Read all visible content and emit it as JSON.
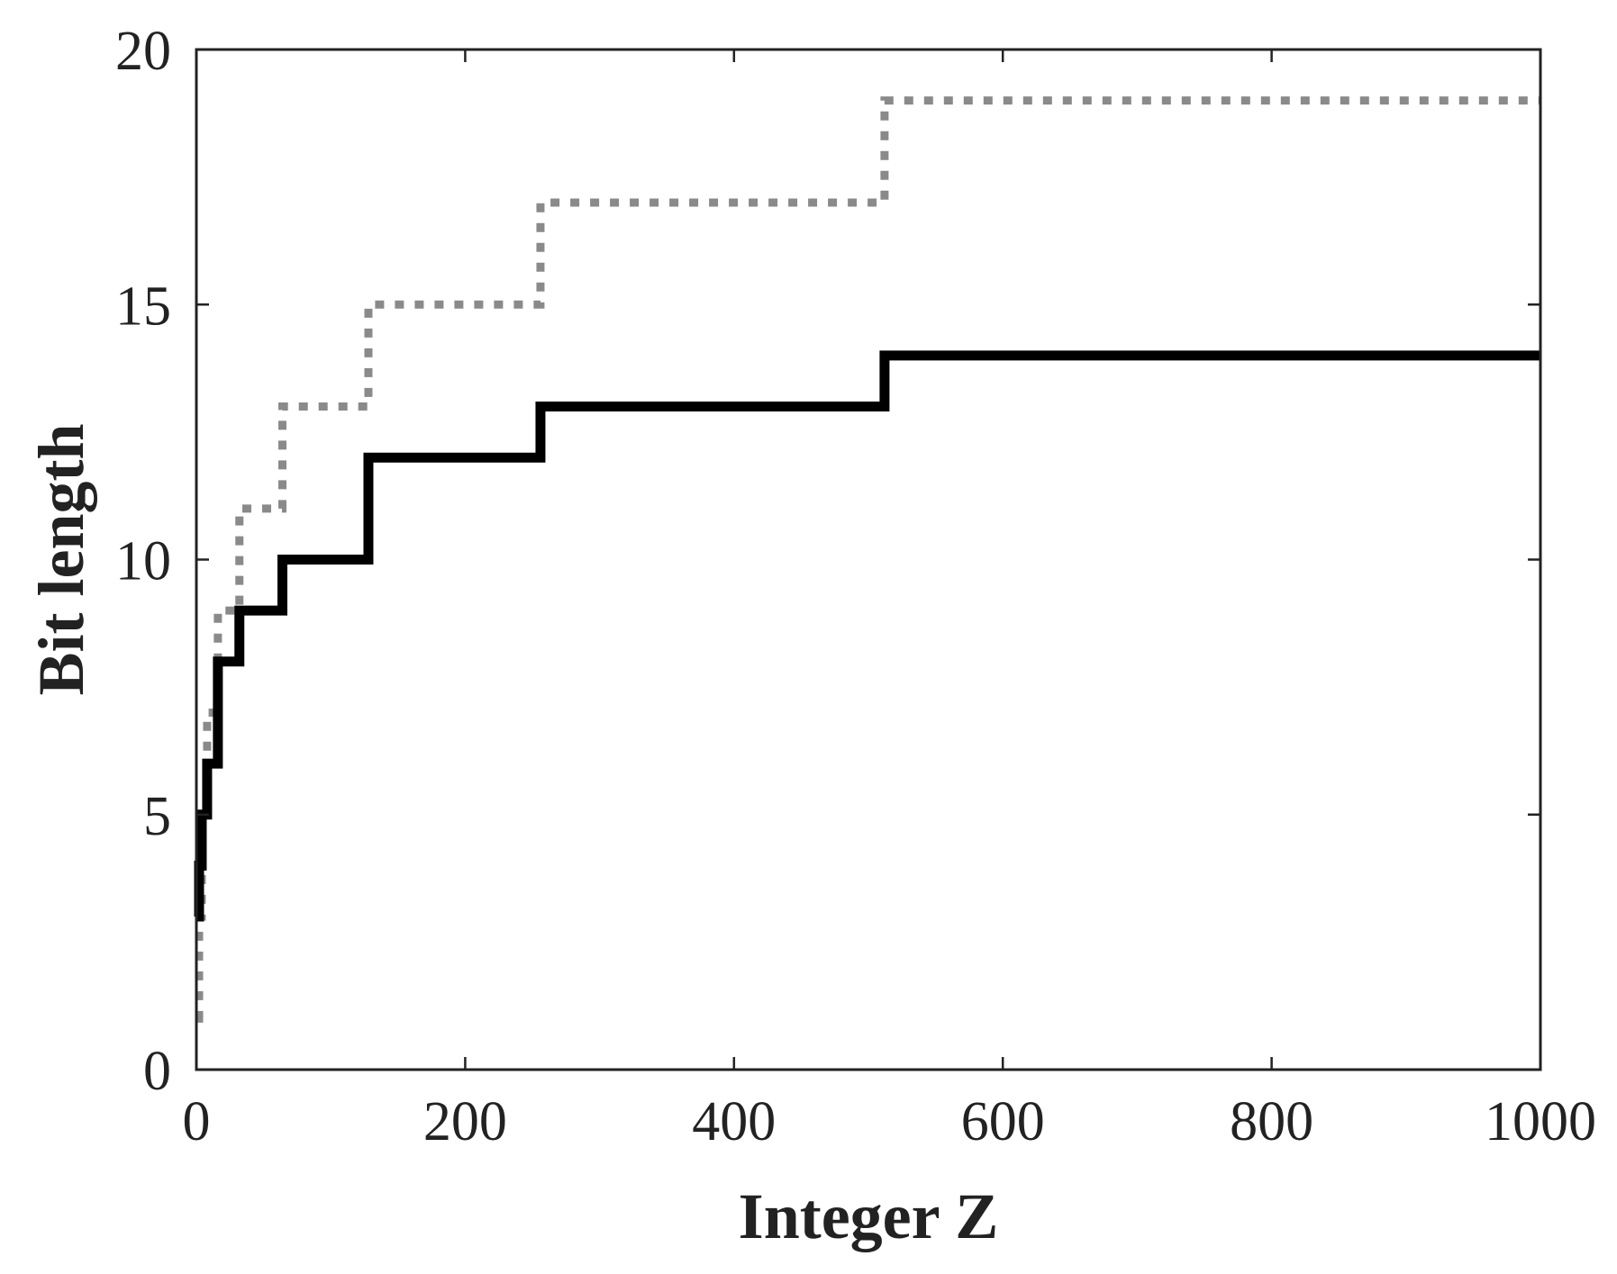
{
  "chart_data": {
    "type": "line",
    "title": "",
    "xlabel": "Integer Z",
    "ylabel": "Bit length",
    "xlim": [
      0,
      1000
    ],
    "ylim": [
      0,
      20
    ],
    "xticks": [
      "0",
      "200",
      "400",
      "600",
      "800",
      "1000"
    ],
    "yticks": [
      "0",
      "5",
      "10",
      "15",
      "20"
    ],
    "grid": false,
    "legend": "none",
    "series": [
      {
        "style": "dotted",
        "color": "#8a8a8a",
        "step": true,
        "x": [
          1,
          2,
          4,
          8,
          16,
          32,
          64,
          128,
          256,
          512,
          1000
        ],
        "y": [
          1,
          3,
          5,
          7,
          9,
          11,
          13,
          15,
          17,
          19,
          19
        ]
      },
      {
        "style": "solid",
        "color": "#000000",
        "step": true,
        "x": [
          1,
          2,
          4,
          8,
          16,
          32,
          64,
          128,
          256,
          512,
          1000
        ],
        "y": [
          3,
          4,
          5,
          6,
          8,
          9,
          10,
          12,
          13,
          14,
          14
        ]
      }
    ]
  }
}
